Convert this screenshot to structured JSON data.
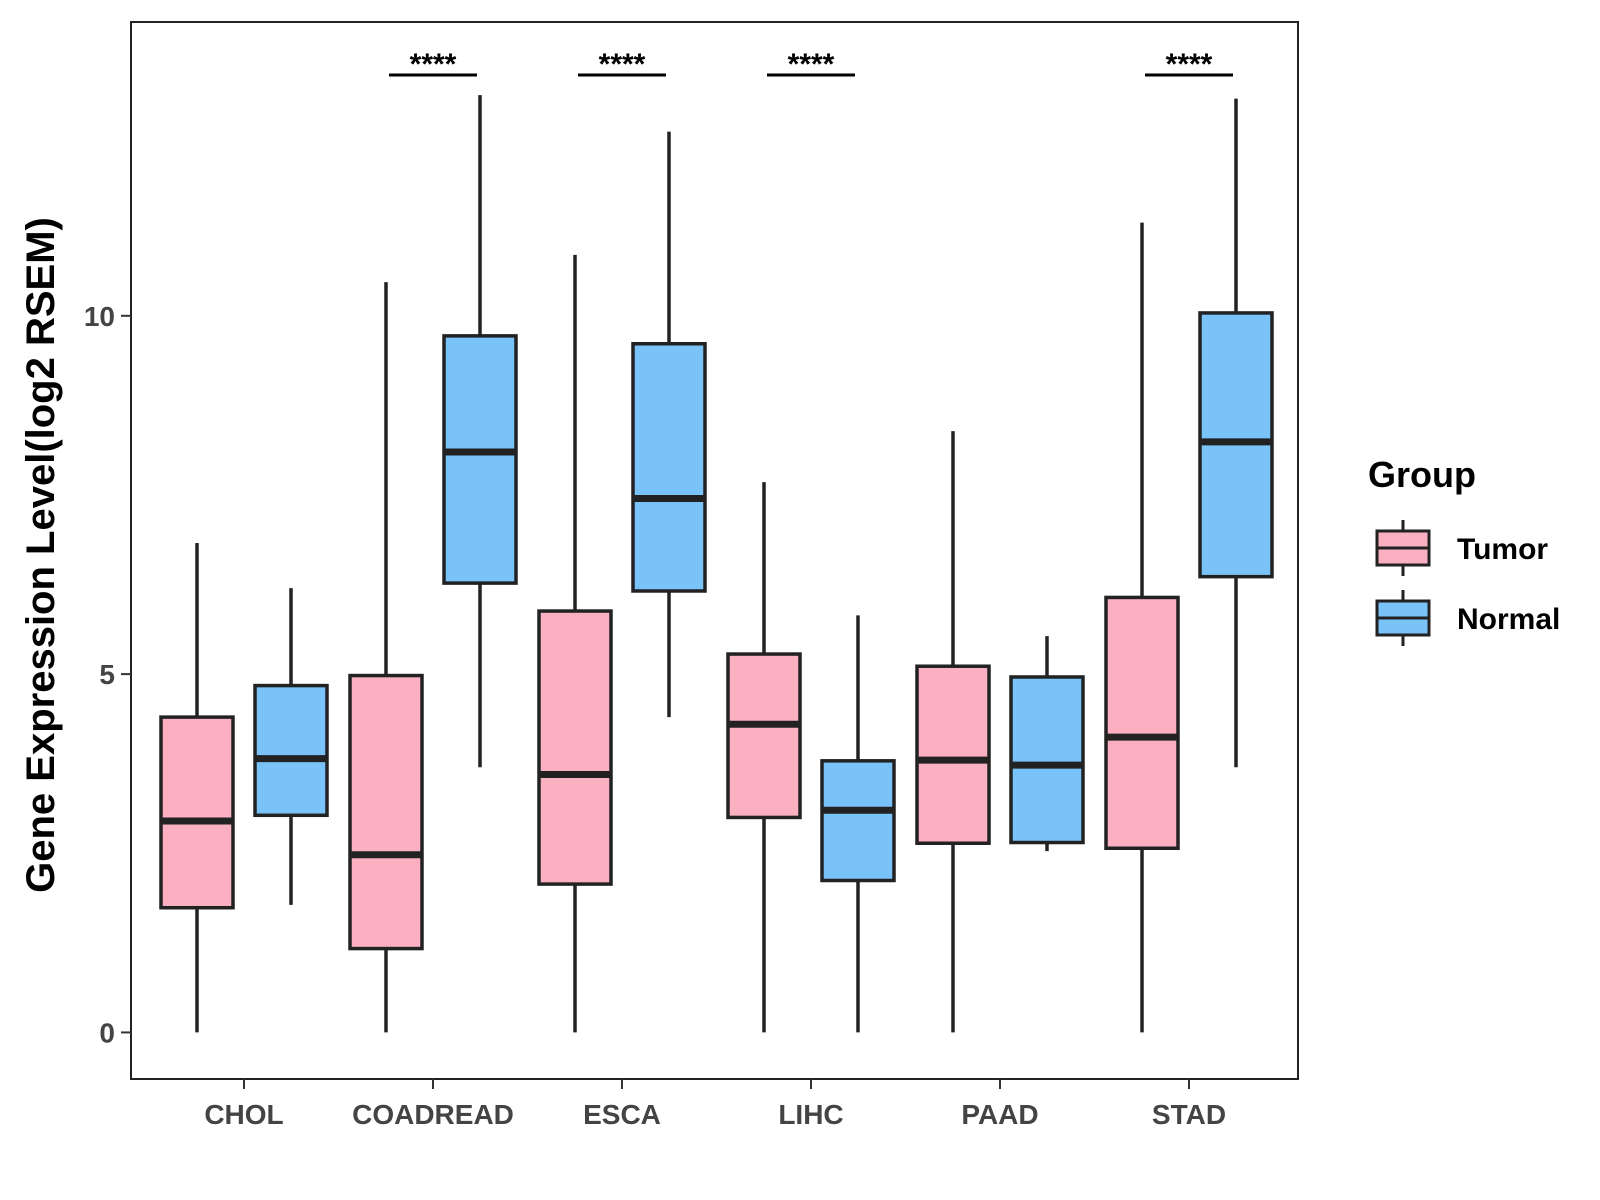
{
  "chart_data": {
    "type": "boxplot",
    "title": "",
    "xlabel": "",
    "ylabel": "Gene Expression Level(log2 RSEM)",
    "ylim": [
      -0.65,
      14.1
    ],
    "yticks": [
      0,
      5,
      10
    ],
    "grid": false,
    "categories": [
      "CHOL",
      "COADREAD",
      "ESCA",
      "LIHC",
      "PAAD",
      "STAD"
    ],
    "series": [
      {
        "name": "Tumor",
        "color": "#FBB0C2",
        "boxes": [
          {
            "min": 0.0,
            "q1": 1.74,
            "median": 2.95,
            "q3": 4.4,
            "max": 6.83
          },
          {
            "min": 0.0,
            "q1": 1.17,
            "median": 2.48,
            "q3": 4.98,
            "max": 10.47
          },
          {
            "min": 0.0,
            "q1": 2.07,
            "median": 3.6,
            "q3": 5.88,
            "max": 10.85
          },
          {
            "min": 0.0,
            "q1": 3.0,
            "median": 4.3,
            "q3": 5.28,
            "max": 7.68
          },
          {
            "min": 0.0,
            "q1": 2.64,
            "median": 3.8,
            "q3": 5.11,
            "max": 8.39
          },
          {
            "min": 0.0,
            "q1": 2.57,
            "median": 4.12,
            "q3": 6.07,
            "max": 11.3
          }
        ]
      },
      {
        "name": "Normal",
        "color": "#7AC3F8",
        "boxes": [
          {
            "min": 1.78,
            "q1": 3.03,
            "median": 3.82,
            "q3": 4.84,
            "max": 6.2
          },
          {
            "min": 3.7,
            "q1": 6.27,
            "median": 8.1,
            "q3": 9.72,
            "max": 13.08
          },
          {
            "min": 4.4,
            "q1": 6.16,
            "median": 7.45,
            "q3": 9.61,
            "max": 12.57
          },
          {
            "min": 0.0,
            "q1": 2.12,
            "median": 3.1,
            "q3": 3.79,
            "max": 5.82
          },
          {
            "min": 2.53,
            "q1": 2.65,
            "median": 3.73,
            "q3": 4.96,
            "max": 5.53
          },
          {
            "min": 3.7,
            "q1": 6.36,
            "median": 8.24,
            "q3": 10.04,
            "max": 13.03
          }
        ]
      }
    ],
    "annotations": [
      {
        "category": "COADREAD",
        "label": "****"
      },
      {
        "category": "ESCA",
        "label": "****"
      },
      {
        "category": "LIHC",
        "label": "****"
      },
      {
        "category": "STAD",
        "label": "****"
      }
    ],
    "legend": {
      "title": "Group",
      "position": "right",
      "items": [
        "Tumor",
        "Normal"
      ]
    }
  }
}
